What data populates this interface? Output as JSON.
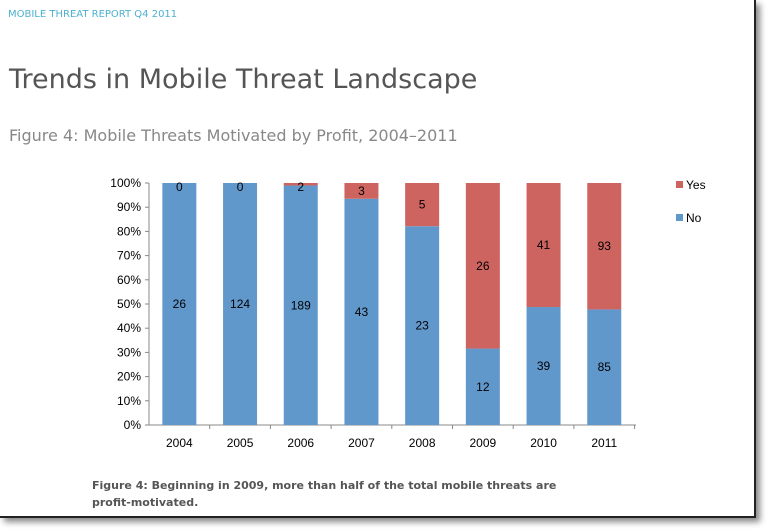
{
  "header": "MOBILE THREAT REPORT Q4 2011",
  "title": "Trends in Mobile Threat Landscape",
  "figure_title": "Figure 4: Mobile Threats Motivated by Profit, 2004–2011",
  "caption": "Figure 4: Beginning in 2009, more than half of the total mobile threats are profit-motivated.",
  "chart_data": {
    "type": "bar",
    "stacked": "percent",
    "categories": [
      "2004",
      "2005",
      "2006",
      "2007",
      "2008",
      "2009",
      "2010",
      "2011"
    ],
    "series": [
      {
        "name": "No",
        "color": "#6198cc",
        "values": [
          26,
          124,
          189,
          43,
          23,
          12,
          39,
          85
        ]
      },
      {
        "name": "Yes",
        "color": "#cd6460",
        "values": [
          0,
          0,
          2,
          3,
          5,
          26,
          41,
          93
        ]
      }
    ],
    "yticks": [
      "0%",
      "10%",
      "20%",
      "30%",
      "40%",
      "50%",
      "60%",
      "70%",
      "80%",
      "90%",
      "100%"
    ],
    "ylim": [
      0,
      100
    ],
    "grid": false,
    "legend": "right"
  }
}
